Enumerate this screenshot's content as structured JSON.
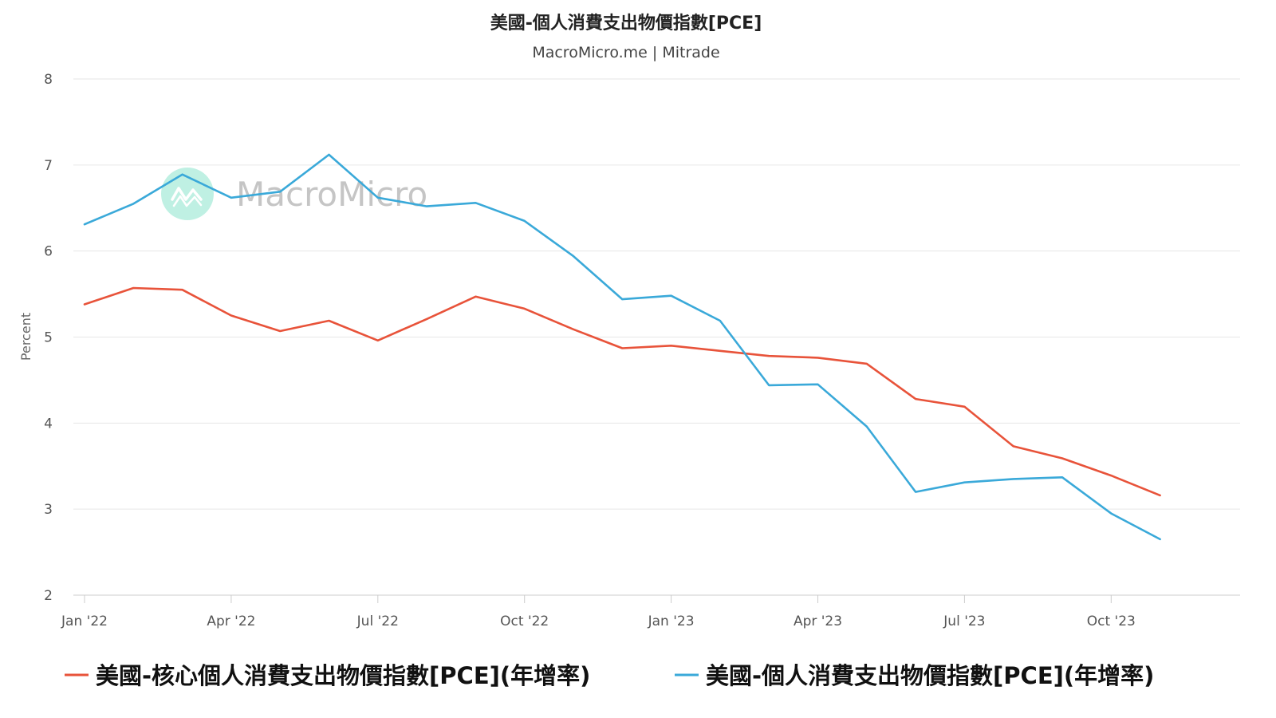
{
  "chart_data": {
    "type": "line",
    "title": "美國-個人消費支出物價指數[PCE]",
    "subtitle": "MacroMicro.me | Mitrade",
    "ylabel": "Percent",
    "ylim": [
      2,
      8
    ],
    "yticks": [
      2,
      3,
      4,
      5,
      6,
      7,
      8
    ],
    "grid": true,
    "legend_position": "bottom",
    "x": [
      "2022-01",
      "2022-02",
      "2022-03",
      "2022-04",
      "2022-05",
      "2022-06",
      "2022-07",
      "2022-08",
      "2022-09",
      "2022-10",
      "2022-11",
      "2022-12",
      "2023-01",
      "2023-02",
      "2023-03",
      "2023-04",
      "2023-05",
      "2023-06",
      "2023-07",
      "2023-08",
      "2023-09",
      "2023-10",
      "2023-11"
    ],
    "xticks": [
      {
        "x": "2022-01",
        "label": "Jan '22"
      },
      {
        "x": "2022-04",
        "label": "Apr '22"
      },
      {
        "x": "2022-07",
        "label": "Jul '22"
      },
      {
        "x": "2022-10",
        "label": "Oct '22"
      },
      {
        "x": "2023-01",
        "label": "Jan '23"
      },
      {
        "x": "2023-04",
        "label": "Apr '23"
      },
      {
        "x": "2023-07",
        "label": "Jul '23"
      },
      {
        "x": "2023-10",
        "label": "Oct '23"
      }
    ],
    "series": [
      {
        "name": "美國-核心個人消費支出物價指數[PCE](年增率)",
        "color": "#e8533a",
        "values": [
          5.38,
          5.57,
          5.55,
          5.25,
          5.07,
          5.19,
          4.96,
          5.21,
          5.47,
          5.33,
          5.09,
          4.87,
          4.9,
          4.84,
          4.78,
          4.76,
          4.69,
          4.28,
          4.19,
          3.73,
          3.59,
          3.39,
          3.16
        ]
      },
      {
        "name": "美國-個人消費支出物價指數[PCE](年增率)",
        "color": "#3aa9d9",
        "values": [
          6.31,
          6.55,
          6.89,
          6.62,
          6.69,
          7.12,
          6.62,
          6.52,
          6.56,
          6.35,
          5.94,
          5.44,
          5.48,
          5.19,
          4.44,
          4.45,
          3.96,
          3.2,
          3.31,
          3.35,
          3.37,
          2.95,
          2.65
        ]
      }
    ]
  },
  "watermark": {
    "text": "MacroMicro",
    "badge_color": "#b9efe0",
    "icon": "chart-logo-icon"
  }
}
